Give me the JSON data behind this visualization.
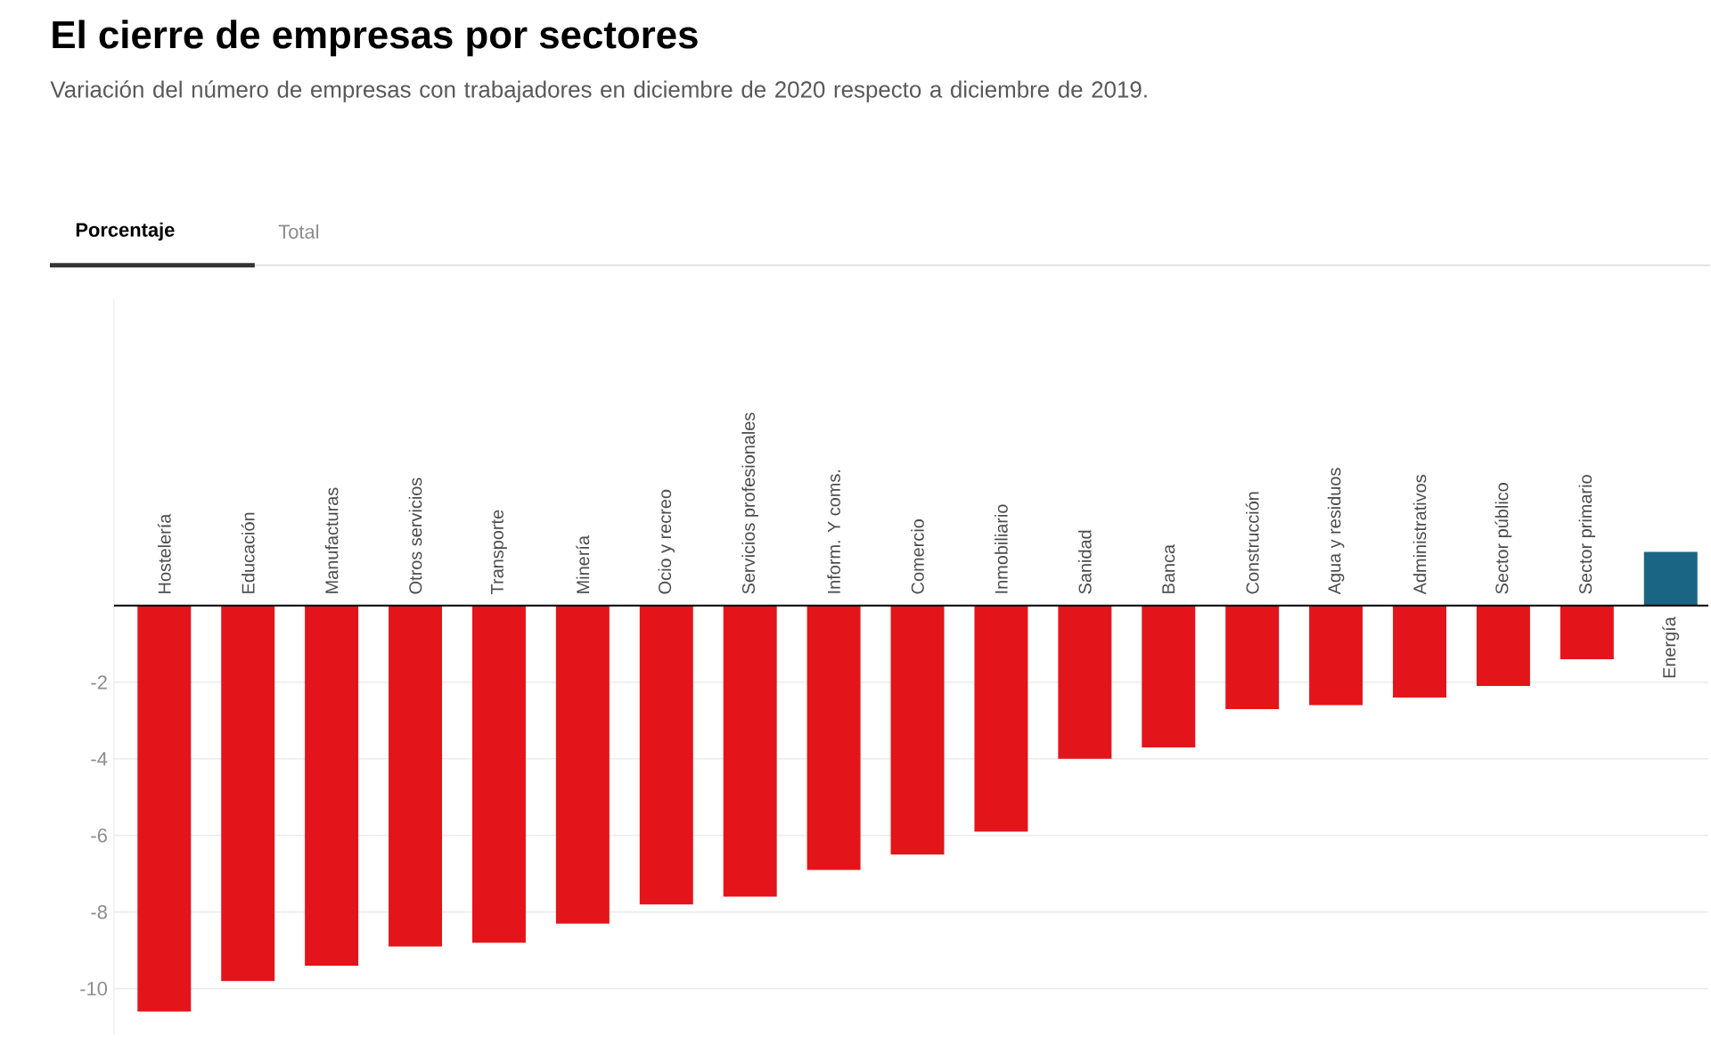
{
  "chart_data": {
    "type": "bar",
    "title": "El cierre de empresas por sectores",
    "subtitle": "Variación del número de empresas con trabajadores en diciembre de 2020 respecto a diciembre de 2019.",
    "annotations": [
      "Porcentaje",
      "Total"
    ],
    "categories": [
      "Hostelería",
      "Educación",
      "Manufacturas",
      "Otros servicios",
      "Transporte",
      "Minería",
      "Ocio y recreo",
      "Servicios profesionales",
      "Inform. Y coms.",
      "Comercio",
      "Inmobiliario",
      "Sanidad",
      "Banca",
      "Construcción",
      "Agua y residuos",
      "Administrativos",
      "Sector público",
      "Sector primario",
      "Energía"
    ],
    "values": [
      -10.6,
      -9.8,
      -9.4,
      -8.9,
      -8.8,
      -8.3,
      -7.8,
      -7.6,
      -6.9,
      -6.5,
      -5.9,
      -4.0,
      -3.7,
      -2.7,
      -2.6,
      -2.4,
      -2.1,
      -1.4,
      1.4
    ],
    "colors": [
      "#e3151a",
      "#e3151a",
      "#e3151a",
      "#e3151a",
      "#e3151a",
      "#e3151a",
      "#e3151a",
      "#e3151a",
      "#e3151a",
      "#e3151a",
      "#e3151a",
      "#e3151a",
      "#e3151a",
      "#e3151a",
      "#e3151a",
      "#e3151a",
      "#e3151a",
      "#e3151a",
      "#1b6584"
    ],
    "ylim": [
      -11.2,
      8
    ],
    "yticks": [
      -10,
      -8,
      -6,
      -4,
      -2
    ],
    "grid": "y"
  }
}
